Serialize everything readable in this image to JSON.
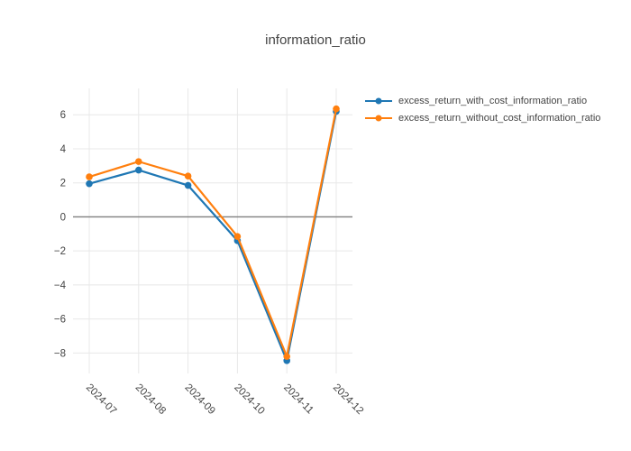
{
  "chart_data": {
    "type": "line",
    "title": "information_ratio",
    "categories": [
      "2024-07",
      "2024-08",
      "2024-09",
      "2024-10",
      "2024-11",
      "2024-12"
    ],
    "series": [
      {
        "name": "excess_return_with_cost_information_ratio",
        "color": "#1f77b4",
        "values": [
          1.95,
          2.75,
          1.85,
          -1.4,
          -8.45,
          6.2
        ]
      },
      {
        "name": "excess_return_without_cost_information_ratio",
        "color": "#ff7f0e",
        "values": [
          2.35,
          3.25,
          2.4,
          -1.15,
          -8.2,
          6.35
        ]
      }
    ],
    "xlabel": "",
    "ylabel": "",
    "ylim": [
      -9.2,
      7.55
    ],
    "ytick_values": [
      6,
      4,
      2,
      0,
      -2,
      -4,
      -6,
      -8
    ],
    "ytick_labels": [
      "6",
      "4",
      "2",
      "0",
      "−2",
      "−4",
      "−6",
      "−8"
    ],
    "xtick_angle_deg": 45,
    "grid": true,
    "zero_line": true,
    "legend_position": "top-right-outside",
    "colors": {
      "background": "#ffffff",
      "grid": "#e8e8e8",
      "zero_line": "#7f7f7f",
      "text": "#444444",
      "title": "#444444"
    }
  }
}
